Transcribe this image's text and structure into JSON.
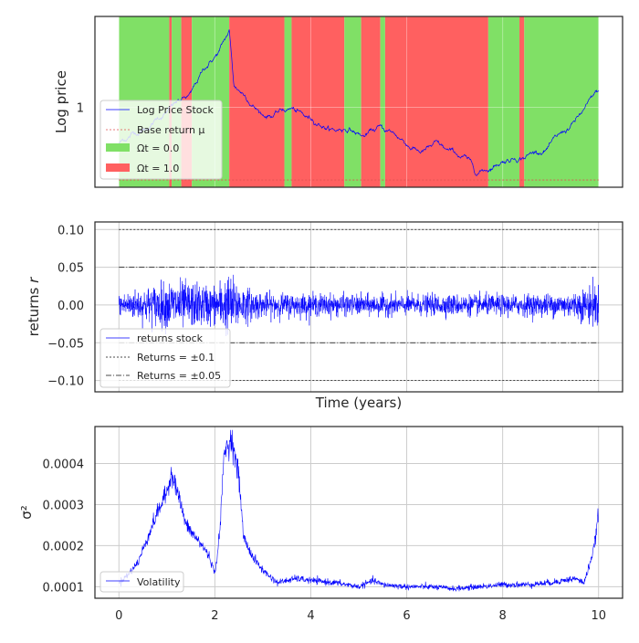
{
  "chart_data": [
    {
      "type": "line",
      "ylabel": "Log price",
      "xlim": [
        -0.5,
        10.5
      ],
      "y_ticks": [
        "1"
      ],
      "grid": true,
      "legend_placement": "lower-left",
      "legend": [
        "Log Price Stock",
        "Base return μ",
        "Ωt = 0.0",
        "Ωt = 1.0"
      ],
      "colors": {
        "line": "#0000ff",
        "regime0": "#80e066",
        "regime1": "#ff6060",
        "mu": "#e05050"
      },
      "regimes": [
        {
          "start": 0.0,
          "end": 1.05,
          "state": 0
        },
        {
          "start": 1.05,
          "end": 1.1,
          "state": 1
        },
        {
          "start": 1.1,
          "end": 1.3,
          "state": 0
        },
        {
          "start": 1.3,
          "end": 1.52,
          "state": 1
        },
        {
          "start": 1.52,
          "end": 2.3,
          "state": 0
        },
        {
          "start": 2.3,
          "end": 3.45,
          "state": 1
        },
        {
          "start": 3.45,
          "end": 3.6,
          "state": 0
        },
        {
          "start": 3.6,
          "end": 4.7,
          "state": 1
        },
        {
          "start": 4.7,
          "end": 5.05,
          "state": 0
        },
        {
          "start": 5.05,
          "end": 5.45,
          "state": 1
        },
        {
          "start": 5.45,
          "end": 5.55,
          "state": 0
        },
        {
          "start": 5.55,
          "end": 7.7,
          "state": 1
        },
        {
          "start": 7.7,
          "end": 8.35,
          "state": 0
        },
        {
          "start": 8.35,
          "end": 8.45,
          "state": 1
        },
        {
          "start": 8.45,
          "end": 10.0,
          "state": 0
        }
      ],
      "series": [
        {
          "name": "Log Price Stock",
          "x": [
            0,
            0.3,
            0.6,
            0.9,
            1.2,
            1.5,
            1.8,
            2.1,
            2.3,
            2.4,
            2.7,
            3.0,
            3.3,
            3.6,
            3.9,
            4.2,
            4.5,
            4.8,
            5.1,
            5.4,
            5.7,
            6.0,
            6.3,
            6.6,
            6.9,
            7.2,
            7.45,
            7.7,
            8.0,
            8.3,
            8.6,
            8.9,
            9.2,
            9.5,
            9.8,
            10.0
          ],
          "y": [
            0.8,
            0.86,
            0.9,
            0.97,
            1.02,
            1.05,
            1.2,
            1.3,
            1.4,
            1.1,
            1.05,
            0.97,
            0.98,
            1.0,
            0.93,
            0.92,
            0.88,
            0.9,
            0.85,
            0.88,
            0.85,
            0.8,
            0.76,
            0.78,
            0.72,
            0.7,
            0.62,
            0.66,
            0.72,
            0.75,
            0.77,
            0.8,
            0.84,
            0.91,
            1.0,
            1.06
          ]
        }
      ],
      "base_return": 0.6
    },
    {
      "type": "line",
      "ylabel": "returns r",
      "xlabel": "Time (years)",
      "xlim": [
        -0.5,
        10.5
      ],
      "ylim": [
        -0.115,
        0.11
      ],
      "y_ticks": [
        "0.10",
        "0.05",
        "0.00",
        "−0.05",
        "−0.10"
      ],
      "grid": true,
      "legend_placement": "lower-left",
      "legend": [
        "returns stock",
        "Returns = ±0.1",
        "Returns = ±0.05"
      ],
      "reference_lines": [
        0.1,
        -0.1,
        0.05,
        -0.05
      ],
      "colors": {
        "line": "#0000ff",
        "ref": "#111111"
      },
      "volatility_envelope": {
        "x": [
          0,
          0.5,
          1.0,
          1.2,
          1.5,
          2.0,
          2.3,
          2.6,
          3.0,
          4.0,
          5.0,
          6.0,
          7.0,
          8.0,
          9.0,
          9.5,
          9.8,
          10.0
        ],
        "amplitude": [
          0.012,
          0.018,
          0.025,
          0.027,
          0.024,
          0.021,
          0.033,
          0.02,
          0.013,
          0.012,
          0.011,
          0.011,
          0.011,
          0.011,
          0.012,
          0.014,
          0.02,
          0.025
        ]
      }
    },
    {
      "type": "line",
      "ylabel": "σ²",
      "xlim": [
        -0.5,
        10.5
      ],
      "ylim": [
        7.2e-05,
        0.00049
      ],
      "x_ticks": [
        "0",
        "2",
        "4",
        "6",
        "8",
        "10"
      ],
      "y_ticks": [
        "0.0004",
        "0.0003",
        "0.0002",
        "0.0001"
      ],
      "grid": true,
      "legend_placement": "lower-left",
      "legend": [
        "Volatility"
      ],
      "colors": {
        "line": "#0000ff"
      },
      "series": [
        {
          "name": "Volatility",
          "x": [
            0,
            0.2,
            0.4,
            0.5,
            0.6,
            0.8,
            1.0,
            1.1,
            1.2,
            1.4,
            1.6,
            1.8,
            1.9,
            2.0,
            2.1,
            2.2,
            2.3,
            2.35,
            2.5,
            2.6,
            2.8,
            3.0,
            3.3,
            3.7,
            4.0,
            4.5,
            5.0,
            5.3,
            5.5,
            6.0,
            6.5,
            7.0,
            7.5,
            8.0,
            8.5,
            9.0,
            9.5,
            9.7,
            9.8,
            9.9,
            10.0
          ],
          "y": [
            0.00011,
            0.00013,
            0.00016,
            0.00019,
            0.00022,
            0.00028,
            0.00033,
            0.00038,
            0.00034,
            0.00025,
            0.00022,
            0.00019,
            0.00017,
            0.00013,
            0.00023,
            0.00043,
            0.00045,
            0.00046,
            0.00037,
            0.00022,
            0.00017,
            0.00014,
            0.00011,
            0.00012,
            0.000115,
            0.00011,
            0.0001,
            0.000115,
            0.000105,
            0.0001,
            0.0001,
            9.5e-05,
            0.0001,
            0.000105,
            0.000105,
            0.00011,
            0.00012,
            0.00011,
            0.00015,
            0.00019,
            0.00028
          ]
        }
      ]
    }
  ]
}
